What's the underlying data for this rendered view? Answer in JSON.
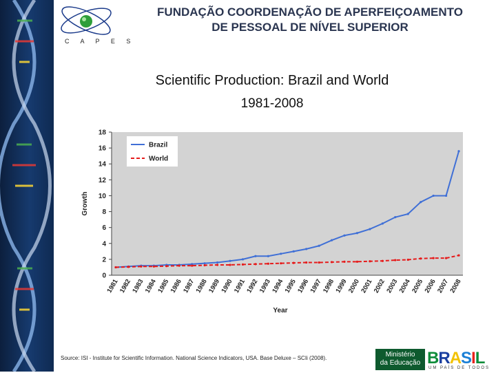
{
  "header": {
    "title_line1": "FUNDAÇÃO COORDENAÇÃO DE APERFEIÇOAMENTO",
    "title_line2": "DE PESSOAL DE NÍVEL SUPERIOR",
    "logo_caption": "C A P E S"
  },
  "footer": {
    "source": "Source: ISI - Institute for Scientific Information. National Science Indicators, USA. Base Deluxe – SCIi (2008).",
    "ministerio_line1": "Ministério",
    "ministerio_line2": "da Educação",
    "brasil_word": [
      "B",
      "R",
      "A",
      "S",
      "I",
      "L"
    ],
    "brasil_tagline": "UM PAÍS DE TODOS"
  },
  "colors": {
    "brazil": "#3f6fd6",
    "world": "#e61a1a",
    "plot_bg": "#d3d3d3",
    "brasil_letters": [
      "#0e8c3a",
      "#1a3fa0",
      "#f2c200",
      "#1a7fd6",
      "#e8231d",
      "#0e8c3a"
    ]
  },
  "chart_data": {
    "type": "line",
    "title": "Scientific Production: Brazil and World",
    "subtitle": "1981-2008",
    "xlabel": "Year",
    "ylabel": "Growth",
    "ylim": [
      0,
      18
    ],
    "yticks": [
      0,
      2,
      4,
      6,
      8,
      10,
      12,
      14,
      16,
      18
    ],
    "grid": false,
    "legend_position": "top-left",
    "categories": [
      "1981",
      "1982",
      "1983",
      "1984",
      "1985",
      "1986",
      "1987",
      "1988",
      "1989",
      "1990",
      "1991",
      "1992",
      "1993",
      "1994",
      "1995",
      "1996",
      "1997",
      "1998",
      "1999",
      "2000",
      "2001",
      "2002",
      "2003",
      "2004",
      "2005",
      "2006",
      "2007",
      "2008"
    ],
    "series": [
      {
        "name": "Brazil",
        "values": [
          1.0,
          1.1,
          1.2,
          1.2,
          1.3,
          1.3,
          1.4,
          1.5,
          1.6,
          1.8,
          2.0,
          2.4,
          2.4,
          2.7,
          3.0,
          3.3,
          3.7,
          4.4,
          5.0,
          5.3,
          5.8,
          6.5,
          7.3,
          7.7,
          9.2,
          10.0,
          10.0,
          15.6
        ]
      },
      {
        "name": "World",
        "values": [
          1.0,
          1.05,
          1.1,
          1.1,
          1.15,
          1.2,
          1.2,
          1.25,
          1.3,
          1.3,
          1.35,
          1.4,
          1.45,
          1.5,
          1.55,
          1.6,
          1.6,
          1.65,
          1.7,
          1.7,
          1.75,
          1.8,
          1.9,
          1.95,
          2.1,
          2.15,
          2.15,
          2.5
        ]
      }
    ]
  }
}
